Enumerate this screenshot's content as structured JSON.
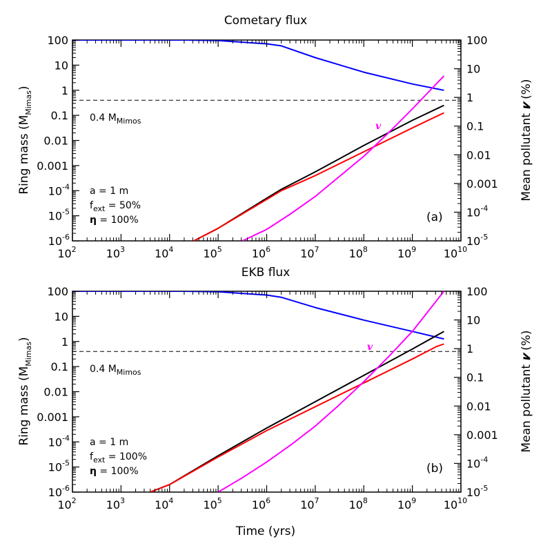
{
  "chart_data": [
    {
      "type": "line",
      "title": "Cometary flux",
      "xlabel": "",
      "ylabel_left": "Ring mass (M",
      "ylabel_left_sub": "Mimas",
      "ylabel_left_end": ")",
      "ylabel_right": "Mean pollutant",
      "ylabel_right_symbol": "𝒗",
      "ylabel_right_end": "(%)",
      "xscale": "log",
      "xlim_exp": [
        2,
        10
      ],
      "yscale_left": "log",
      "ylim_left_exp": [
        -6,
        2
      ],
      "yscale_right": "log",
      "ylim_right_exp": [
        -5,
        2
      ],
      "xtick_exps": [
        "2",
        "3",
        "4",
        "5",
        "6",
        "7",
        "8",
        "9",
        "10"
      ],
      "ytick_left_labels": [
        "100",
        "10",
        "1",
        "0.1",
        "0.01",
        "0.001",
        "-4",
        "-5",
        "-6"
      ],
      "ytick_left_values_exp": [
        2,
        1,
        0,
        -1,
        -2,
        -3,
        -4,
        -5,
        -6
      ],
      "ytick_right_labels": [
        "100",
        "10",
        "1",
        "0.1",
        "0.01",
        "0.001",
        "-4",
        "-5"
      ],
      "ytick_right_values_exp": [
        2,
        1,
        0,
        -1,
        -2,
        -3,
        -4,
        -5
      ],
      "reference_line": {
        "value": 0.4,
        "label": "0.4 M",
        "label_sub": "Mimos"
      },
      "annotations": {
        "line1": "a = 1 m",
        "f": "f",
        "f_sub": "ext",
        "f_value": " = 50%",
        "eta": "η",
        "eta_value": " = 100%"
      },
      "panel_label": "(a)",
      "series_label": "v",
      "series": [
        {
          "name": "ring-mass-total",
          "axis": "left",
          "color": "#0000ff",
          "x_exp": [
            2,
            3,
            4,
            4.3,
            5,
            6,
            6.3,
            7,
            8,
            9,
            9.65
          ],
          "y_exp": [
            2,
            2,
            2,
            2,
            1.98,
            1.85,
            1.77,
            1.3,
            0.72,
            0.25,
            0
          ]
        },
        {
          "name": "ring-mass-black",
          "axis": "left",
          "color": "#000000",
          "x_exp": [
            4.5,
            5,
            6,
            6.3,
            7,
            8,
            9,
            9.65
          ],
          "y_exp": [
            -6,
            -5.5,
            -4.3,
            -3.95,
            -3.25,
            -2.2,
            -1.2,
            -0.6
          ]
        },
        {
          "name": "ring-mass-red",
          "axis": "left",
          "color": "#ff0000",
          "x_exp": [
            4.5,
            5,
            6,
            6.3,
            7,
            8,
            9,
            9.65
          ],
          "y_exp": [
            -6,
            -5.5,
            -4.35,
            -4.0,
            -3.4,
            -2.45,
            -1.5,
            -0.9
          ]
        },
        {
          "name": "pollutant-v",
          "axis": "right",
          "color": "#ff00ff",
          "x_exp": [
            5.5,
            6,
            6.5,
            7,
            7.5,
            8,
            8.5,
            9,
            9.65
          ],
          "y_exp": [
            -5,
            -4.6,
            -4.05,
            -3.45,
            -2.75,
            -2.05,
            -1.25,
            -0.4,
            0.75
          ]
        }
      ]
    },
    {
      "type": "line",
      "title": "EKB flux",
      "xlabel": "Time (yrs)",
      "ylabel_left": "Ring mass (M",
      "ylabel_left_sub": "Mimas",
      "ylabel_left_end": ")",
      "ylabel_right": "Mean pollutant",
      "ylabel_right_symbol": "𝒗",
      "ylabel_right_end": "(%)",
      "xscale": "log",
      "xlim_exp": [
        2,
        10
      ],
      "yscale_left": "log",
      "ylim_left_exp": [
        -6,
        2
      ],
      "yscale_right": "log",
      "ylim_right_exp": [
        -5,
        2
      ],
      "xtick_exps": [
        "2",
        "3",
        "4",
        "5",
        "6",
        "7",
        "8",
        "9",
        "10"
      ],
      "ytick_left_labels": [
        "100",
        "10",
        "1",
        "0.1",
        "0.01",
        "0.001",
        "-4",
        "-5",
        "-6"
      ],
      "ytick_left_values_exp": [
        2,
        1,
        0,
        -1,
        -2,
        -3,
        -4,
        -5,
        -6
      ],
      "ytick_right_labels": [
        "100",
        "10",
        "1",
        "0.1",
        "0.01",
        "0.001",
        "-4",
        "-5"
      ],
      "ytick_right_values_exp": [
        2,
        1,
        0,
        -1,
        -2,
        -3,
        -4,
        -5
      ],
      "reference_line": {
        "value": 0.4,
        "label": "0.4 M",
        "label_sub": "Mimos"
      },
      "annotations": {
        "line1": "a = 1 m",
        "f": "f",
        "f_sub": "ext",
        "f_value": " = 100%",
        "eta": "η",
        "eta_value": " = 100%"
      },
      "panel_label": "(b)",
      "series_label": "v",
      "series": [
        {
          "name": "ring-mass-total",
          "axis": "left",
          "color": "#0000ff",
          "x_exp": [
            2,
            3,
            4,
            4.3,
            5,
            6,
            6.3,
            7,
            8,
            9,
            9.65
          ],
          "y_exp": [
            2,
            2,
            2,
            2,
            1.98,
            1.85,
            1.76,
            1.35,
            0.85,
            0.4,
            0.1
          ]
        },
        {
          "name": "ring-mass-black",
          "axis": "left",
          "color": "#000000",
          "x_exp": [
            3.6,
            4,
            5,
            6,
            7,
            8,
            9,
            9.65
          ],
          "y_exp": [
            -6,
            -5.7,
            -4.55,
            -3.45,
            -2.4,
            -1.35,
            -0.3,
            0.4
          ]
        },
        {
          "name": "ring-mass-red",
          "axis": "left",
          "color": "#ff0000",
          "x_exp": [
            3.6,
            4,
            5,
            6,
            7,
            8,
            9,
            9.5,
            9.65
          ],
          "y_exp": [
            -6,
            -5.7,
            -4.6,
            -3.55,
            -2.6,
            -1.65,
            -0.7,
            -0.2,
            -0.1
          ]
        },
        {
          "name": "pollutant-v",
          "axis": "right",
          "color": "#ff00ff",
          "x_exp": [
            5,
            5.5,
            6,
            6.5,
            7,
            7.5,
            8,
            8.5,
            9,
            9.65
          ],
          "y_exp": [
            -5,
            -4.5,
            -3.95,
            -3.35,
            -2.7,
            -1.95,
            -1.15,
            -0.3,
            0.6,
            2
          ]
        }
      ]
    }
  ]
}
